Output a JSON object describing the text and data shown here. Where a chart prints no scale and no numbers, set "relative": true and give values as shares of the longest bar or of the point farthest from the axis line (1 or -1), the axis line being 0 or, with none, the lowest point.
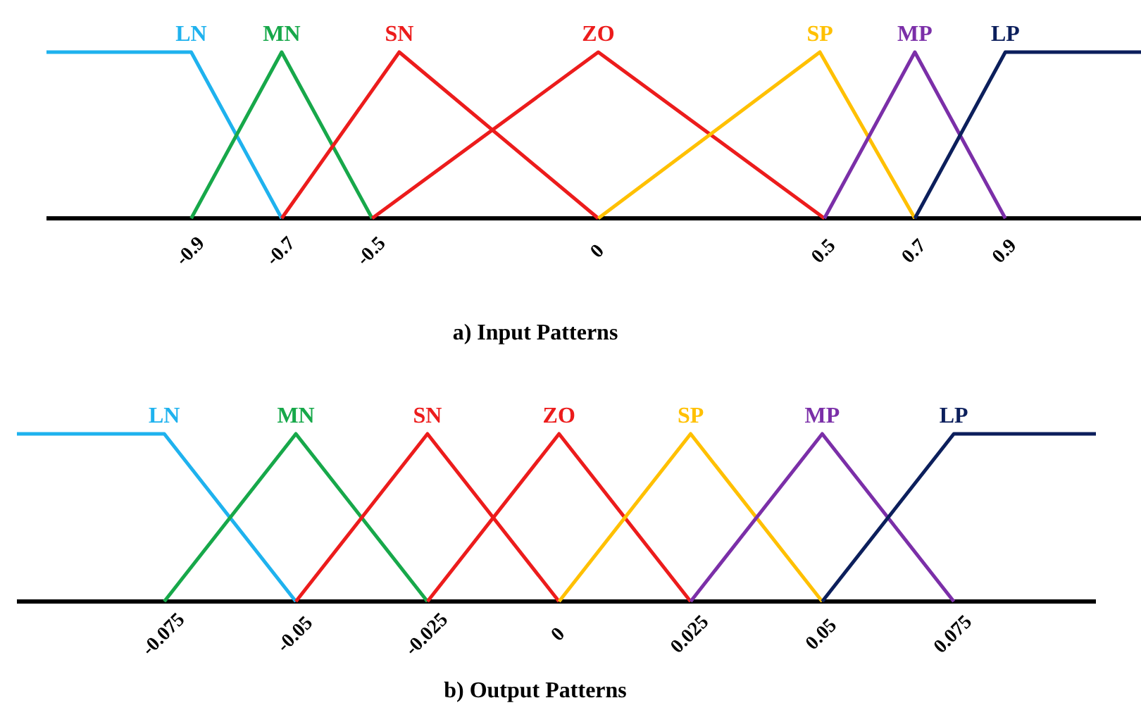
{
  "chart_data": [
    {
      "type": "line",
      "xlabel": "a) Input Patterns",
      "relative": true,
      "xlim": [
        -1.22,
        1.2
      ],
      "xticks": [
        -0.9,
        -0.7,
        -0.5,
        0,
        0.5,
        0.7,
        0.9
      ],
      "grid": false,
      "legend": false,
      "marker": "none",
      "line_style": "solid",
      "series": [
        {
          "name": "LN",
          "color": "#1fb2ee",
          "x": [
            -1.22,
            -0.9,
            -0.7
          ],
          "values": [
            1,
            1,
            0
          ]
        },
        {
          "name": "MN",
          "color": "#17a84a",
          "x": [
            -0.9,
            -0.7,
            -0.5
          ],
          "values": [
            0,
            1,
            0
          ]
        },
        {
          "name": "SN",
          "color": "#ec1c1c",
          "x": [
            -0.7,
            -0.44,
            0
          ],
          "values": [
            0,
            1,
            0
          ]
        },
        {
          "name": "ZO",
          "color": "#ec1c1c",
          "x": [
            -0.5,
            0,
            0.5
          ],
          "values": [
            0,
            1,
            0
          ]
        },
        {
          "name": "SP",
          "color": "#ffc000",
          "x": [
            0,
            0.49,
            0.7
          ],
          "values": [
            0,
            1,
            0
          ]
        },
        {
          "name": "MP",
          "color": "#7b2fa8",
          "x": [
            0.5,
            0.7,
            0.9
          ],
          "values": [
            0,
            1,
            0
          ]
        },
        {
          "name": "LP",
          "color": "#0c1f5c",
          "x": [
            0.7,
            0.9,
            1.2
          ],
          "values": [
            0,
            1,
            1
          ]
        }
      ]
    },
    {
      "type": "line",
      "xlabel": "b) Output Patterns",
      "relative": true,
      "xlim": [
        -0.103,
        0.102
      ],
      "xticks": [
        -0.075,
        -0.05,
        -0.025,
        0,
        0.025,
        0.05,
        0.075
      ],
      "grid": false,
      "legend": false,
      "marker": "none",
      "line_style": "solid",
      "series": [
        {
          "name": "LN",
          "color": "#1fb2ee",
          "x": [
            -0.103,
            -0.075,
            -0.05
          ],
          "values": [
            1,
            1,
            0
          ]
        },
        {
          "name": "MN",
          "color": "#17a84a",
          "x": [
            -0.075,
            -0.05,
            -0.025
          ],
          "values": [
            0,
            1,
            0
          ]
        },
        {
          "name": "SN",
          "color": "#ec1c1c",
          "x": [
            -0.05,
            -0.025,
            0
          ],
          "values": [
            0,
            1,
            0
          ]
        },
        {
          "name": "ZO",
          "color": "#ec1c1c",
          "x": [
            -0.025,
            0,
            0.025
          ],
          "values": [
            0,
            1,
            0
          ]
        },
        {
          "name": "SP",
          "color": "#ffc000",
          "x": [
            0,
            0.025,
            0.05
          ],
          "values": [
            0,
            1,
            0
          ]
        },
        {
          "name": "MP",
          "color": "#7b2fa8",
          "x": [
            0.025,
            0.05,
            0.075
          ],
          "values": [
            0,
            1,
            0
          ]
        },
        {
          "name": "LP",
          "color": "#0c1f5c",
          "x": [
            0.05,
            0.075,
            0.102
          ],
          "values": [
            0,
            1,
            1
          ]
        }
      ]
    }
  ]
}
